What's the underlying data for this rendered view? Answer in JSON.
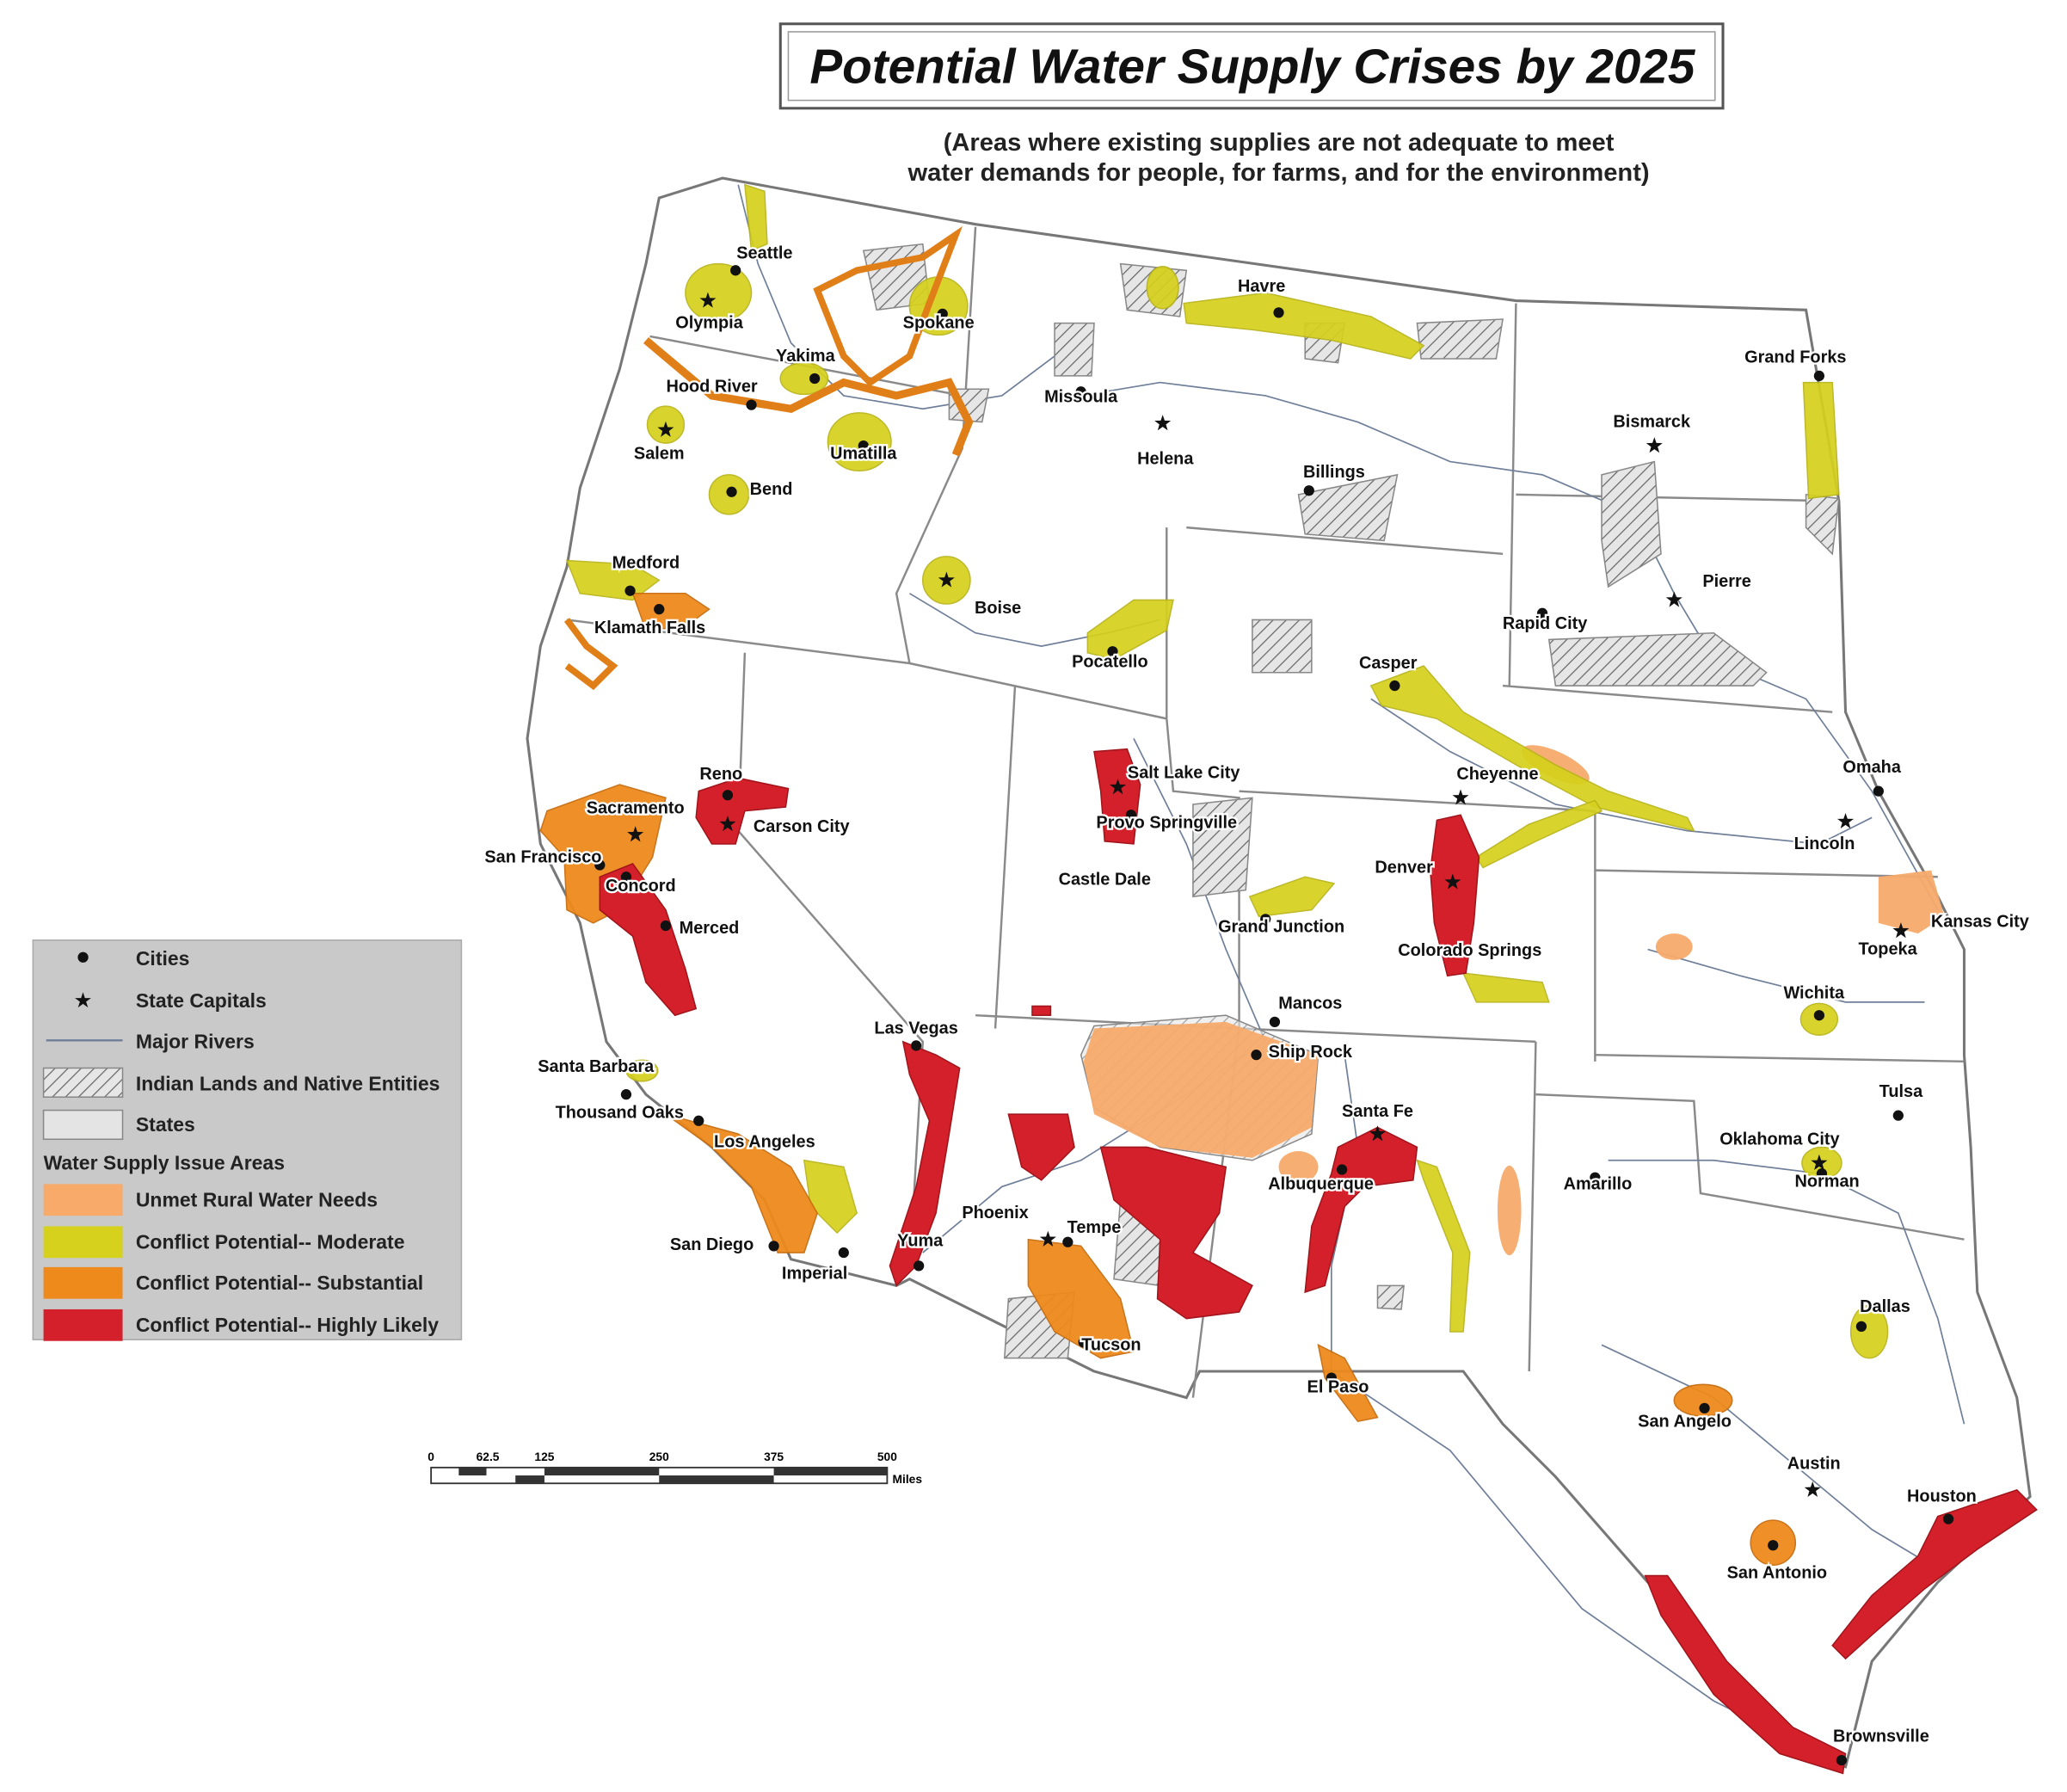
{
  "title": "Potential Water Supply Crises by 2025",
  "subtitle_lines": [
    "(Areas where existing supplies are not adequate to meet",
    "water demands for people, for farms, and for the environment)"
  ],
  "cities": [
    {
      "label": "Seattle"
    },
    {
      "label": "Olympia"
    },
    {
      "label": "Spokane"
    },
    {
      "label": "Yakima"
    },
    {
      "label": "Hood River"
    },
    {
      "label": "Salem"
    },
    {
      "label": "Umatilla"
    },
    {
      "label": "Bend"
    },
    {
      "label": "Havre"
    },
    {
      "label": "Missoula"
    },
    {
      "label": "Helena"
    },
    {
      "label": "Billings"
    },
    {
      "label": "Grand Forks"
    },
    {
      "label": "Bismarck"
    },
    {
      "label": "Medford"
    },
    {
      "label": "Klamath Falls"
    },
    {
      "label": "Boise"
    },
    {
      "label": "Pocatello"
    },
    {
      "label": "Pierre"
    },
    {
      "label": "Rapid City"
    },
    {
      "label": "Casper"
    },
    {
      "label": "Salt Lake City"
    },
    {
      "label": "Provo Springville"
    },
    {
      "label": "Cheyenne"
    },
    {
      "label": "Omaha"
    },
    {
      "label": "Lincoln"
    },
    {
      "label": "Reno"
    },
    {
      "label": "Carson City"
    },
    {
      "label": "Sacramento"
    },
    {
      "label": "San Francisco"
    },
    {
      "label": "Concord"
    },
    {
      "label": "Merced"
    },
    {
      "label": "Castle Dale"
    },
    {
      "label": "Denver"
    },
    {
      "label": "Grand Junction"
    },
    {
      "label": "Kansas City"
    },
    {
      "label": "Topeka"
    },
    {
      "label": "Colorado Springs"
    },
    {
      "label": "Wichita"
    },
    {
      "label": "Santa Barbara"
    },
    {
      "label": "Mancos"
    },
    {
      "label": "Ship Rock"
    },
    {
      "label": "Las Vegas"
    },
    {
      "label": "Thousand Oaks"
    },
    {
      "label": "Tulsa"
    },
    {
      "label": "Santa Fe"
    },
    {
      "label": "Oklahoma City"
    },
    {
      "label": "Los Angeles"
    },
    {
      "label": "Albuquerque"
    },
    {
      "label": "Norman"
    },
    {
      "label": "Amarillo"
    },
    {
      "label": "Phoenix"
    },
    {
      "label": "Tempe"
    },
    {
      "label": "San Diego"
    },
    {
      "label": "Yuma"
    },
    {
      "label": "Imperial"
    },
    {
      "label": "Dallas"
    },
    {
      "label": "Tucson"
    },
    {
      "label": "El Paso"
    },
    {
      "label": "San Angelo"
    },
    {
      "label": "Austin"
    },
    {
      "label": "Houston"
    },
    {
      "label": "San Antonio"
    },
    {
      "label": "Brownsville"
    }
  ],
  "legend": {
    "items": [
      "Cities",
      "State Capitals",
      "Major Rivers",
      "Indian Lands and Native Entities",
      "States"
    ],
    "section_title": "Water Supply Issue Areas",
    "issue_areas": [
      "Unmet Rural Water Needs",
      "Conflict Potential-- Moderate",
      "Conflict Potential-- Substantial",
      "Conflict Potential-- Highly Likely"
    ]
  },
  "scale_bar": {
    "labels": [
      "0",
      "62.5",
      "125",
      "250",
      "375",
      "500"
    ],
    "unit": "Miles"
  }
}
